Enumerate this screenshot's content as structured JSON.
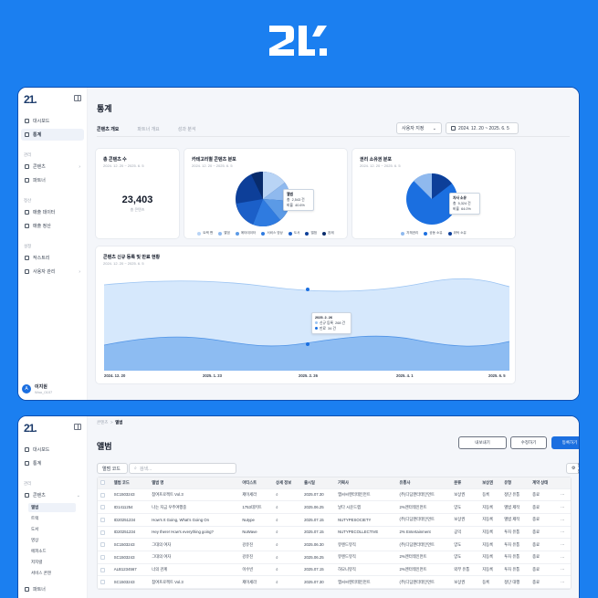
{
  "colors": {
    "background": "#1b7ff0",
    "accent": "#1b6fe0",
    "sidebar_active": "#eef2f9"
  },
  "logo": {
    "text": "21."
  },
  "top_window": {
    "sidebar": {
      "brand": "21.",
      "items_top": [
        {
          "label": "대시보드",
          "icon": "dashboard-icon"
        },
        {
          "label": "통계",
          "icon": "chart-icon",
          "active": true
        }
      ],
      "group_manage": "관리",
      "items_manage": [
        {
          "label": "콘텐츠",
          "icon": "content-icon",
          "chevron": "›"
        },
        {
          "label": "파트너",
          "icon": "partner-icon"
        }
      ],
      "group_finance": "정산",
      "items_finance": [
        {
          "label": "매출 데이터",
          "icon": "sales-icon"
        },
        {
          "label": "매출 정산",
          "icon": "settle-icon"
        }
      ],
      "group_settings": "설정",
      "items_settings": [
        {
          "label": "작스트리",
          "icon": "list-icon"
        },
        {
          "label": "사용자 관리",
          "icon": "users-icon",
          "chevron": "›"
        }
      ],
      "user": {
        "initial": "A",
        "name": "이지원",
        "email": "Woo_0107"
      }
    },
    "page_title": "통계",
    "tabs": [
      {
        "label": "콘텐츠 개요",
        "active": true
      },
      {
        "label": "파트너 개요"
      },
      {
        "label": "성과 분석"
      }
    ],
    "filter": {
      "select_label": "사용자 지정",
      "chevron": "⌄",
      "date_range": "2024. 12. 20 ~ 2025. 6. 5"
    },
    "card_total": {
      "title": "총 콘텐츠 수",
      "subtitle": "2024. 12. 20 ~ 2025. 6. 5",
      "value": "23,403",
      "caption": "총 콘텐츠"
    },
    "card_category": {
      "title": "카테고리별 콘텐츠 분포",
      "subtitle": "2024. 12. 20 ~ 2025. 6. 5",
      "legend": [
        {
          "label": "트랙 팬",
          "color": "#b9d4f5"
        },
        {
          "label": "앨범",
          "color": "#8fb9ee"
        },
        {
          "label": "메타데이터",
          "color": "#5b9ae6"
        },
        {
          "label": "서비스 영상",
          "color": "#2f7be0"
        },
        {
          "label": "도서",
          "color": "#1b5fc8"
        },
        {
          "label": "앨범",
          "color": "#0d3f99"
        },
        {
          "label": "완제",
          "color": "#082b6b"
        }
      ],
      "tooltip": {
        "title": "앨범",
        "row1_label": "총",
        "row1_value": "2,543 건",
        "row2_label": "비율",
        "row2_value": "40.6%"
      }
    },
    "card_rights": {
      "title": "권리 소유권 분포",
      "subtitle": "2024. 12. 20 ~ 2025. 6. 5",
      "legend": [
        {
          "label": "자체권리",
          "color": "#8fb9ee"
        },
        {
          "label": "공동 소유",
          "color": "#1b6fe0"
        },
        {
          "label": "위탁 소유",
          "color": "#0d3f99"
        }
      ],
      "tooltip": {
        "title": "자사 소유",
        "row1_label": "총",
        "row1_value": "5,324 건",
        "row2_label": "비율",
        "row2_value": "64.0%"
      }
    },
    "card_trend": {
      "title": "콘텐츠 신규 등록 및 만료 현황",
      "subtitle": "2024. 12. 20 ~ 2025. 6. 5",
      "x_labels": [
        "2024. 12. 20",
        "2025. 1. 23",
        "2025. 2. 26",
        "2025. 4. 1",
        "2025. 6. 5"
      ],
      "tooltip": {
        "title": "2025. 2. 26",
        "row1_label": "신규 등록",
        "row1_value": "268 건",
        "row2_label": "만료",
        "row2_value": "34 건"
      }
    }
  },
  "bottom_window": {
    "sidebar": {
      "brand": "21.",
      "items_top": [
        {
          "label": "대시보드",
          "icon": "dashboard-icon"
        },
        {
          "label": "통계",
          "icon": "chart-icon"
        }
      ],
      "group_manage": "관리",
      "content_label": "콘텐츠",
      "content_chevron": "⌄",
      "sub_items": [
        {
          "label": "앨범",
          "active": true
        },
        {
          "label": "트랙"
        },
        {
          "label": "도서"
        },
        {
          "label": "영상"
        },
        {
          "label": "에피소드"
        },
        {
          "label": "저지렬"
        },
        {
          "label": "서비스 콘텐"
        }
      ],
      "partner_label": "파트너"
    },
    "breadcrumb": {
      "parent": "콘텐츠",
      "sep": ">",
      "current": "앨범"
    },
    "page_title": "앨범",
    "buttons": {
      "export": "내보내기",
      "edit": "수정하기",
      "register": "등록하기"
    },
    "search": {
      "select_label": "앨범 코드",
      "placeholder": "검색...",
      "settings": "설정"
    },
    "columns": [
      "앨범 코드",
      "앨범 명",
      "아티스트",
      "상세 정보",
      "출시일",
      "기획사",
      "유통사",
      "분류",
      "보상권",
      "유형",
      "계약 상태"
    ],
    "rows": [
      [
        "SC1503243",
        "참여프로젝트 Vol.3",
        "제이세라",
        "⌕",
        "2025.07.30",
        "엠씨씨엔터테인먼트",
        "(주)디딤엔터테인먼트",
        "보상권",
        "등록",
        "정단 유통",
        "종료"
      ],
      [
        "ID1411254",
        "나는 지금 우주여행중",
        "1753데키트",
        "⌕",
        "2025.06.25",
        "날다 시운드랩",
        "2%엔터테인먼트",
        "양도",
        "지등록",
        "앨범 제작",
        "종료"
      ],
      [
        "ID20251234",
        "How's It Going, What's Going On",
        "Nutype",
        "⌕",
        "2025.07.15",
        "NUTYPESOCIETY",
        "(주)디딤엔터테인먼트",
        "보상권",
        "지등록",
        "앨범 제작",
        "종료"
      ],
      [
        "ID20251234",
        "Hey there! How's everything going?",
        "NuWave",
        "⌕",
        "2025.07.15",
        "NUTYPECOLLECTIVE",
        "2% Entertainment",
        "공익",
        "지등록",
        "투자 유통",
        "종료"
      ],
      [
        "SC1503243",
        "그대의 여자",
        "강유진",
        "⌕",
        "2025.06.30",
        "뮤렌드뮤직",
        "(주)디딤엔터테인먼트",
        "양도",
        "지등록",
        "투자 유통",
        "종료"
      ],
      [
        "SC1503243",
        "그대의 여자",
        "강유진",
        "⌕",
        "2025.06.25",
        "뮤렌드뮤직",
        "2%엔터테인먼트",
        "양도",
        "지등록",
        "투자 유통",
        "종료"
      ],
      [
        "ALB1234567",
        "너의 관계",
        "이수빈",
        "⌕",
        "2025.07.15",
        "하모니뮤직",
        "2%엔터테인먼트",
        "외부 유통",
        "지등록",
        "투자 유통",
        "종료"
      ],
      [
        "SC1503243",
        "참여프로젝트 Vol.3",
        "제이세라",
        "⌕",
        "2025.07.30",
        "엠씨씨엔터테인먼트",
        "(주)디딤엔터테인먼트",
        "보상권",
        "등록",
        "정단 대행",
        "종료"
      ]
    ]
  }
}
